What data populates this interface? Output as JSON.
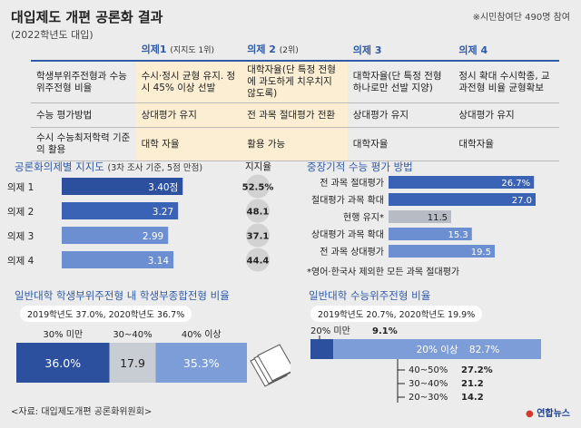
{
  "header": {
    "title": "대입제도 개편 공론화 결과",
    "subtitle": "(2022학년도 대입)",
    "note": "※시민참여단 490명 참여"
  },
  "table": {
    "columns": [
      {
        "label": "의제1",
        "sub": "(지지도 1위)"
      },
      {
        "label": "의제 2",
        "sub": "(2위)"
      },
      {
        "label": "의제 3",
        "sub": ""
      },
      {
        "label": "의제 4",
        "sub": ""
      }
    ],
    "rows": [
      {
        "header": "학생부위주전형과 수능위주전형 비율",
        "cells": [
          "수시·정시 균형 유지. 정시 45% 이상 선발",
          "대학자율(단 특정 전형에 과도하게 치우치지 않도록)",
          "대학자율(단 특정 전형 하나로만 선발 지양)",
          "정시 확대 수시학종, 교과전형 비율 균형확보"
        ]
      },
      {
        "header": "수능 평가방법",
        "cells": [
          "상대평가 유지",
          "전 과목  절대평가 전환",
          "상대평가 유지",
          "상대평가 유지"
        ]
      },
      {
        "header": "수시 수능최저학력 기준의 활용",
        "cells": [
          "대학 자율",
          "활용 가능",
          "대학자율",
          "대학자율"
        ]
      }
    ]
  },
  "support": {
    "title": "공론화의제별 지지도",
    "title_sub": "(3차 조사 기준, 5점 만점)",
    "pct_header": "지지율"
  },
  "method": {
    "title": "중장기적 수능 평가 방법",
    "footnote": "*영어·한국사 제외한 모든 과목 절대평가"
  },
  "comp": {
    "title": "일반대학 학생부위주전형 내 학생부종합전형 비율",
    "pill_text": "2019학년도 37.0%, 2020학년도 36.7%"
  },
  "csat": {
    "title": "일반대학 수능위주전형 비율",
    "pill_text": "2019학년도 20.7%, 2020학년도 19.9%"
  },
  "footer": {
    "source": "<자료: 대입제도개편 공론화위원회>",
    "logo": "연합뉴스"
  },
  "chart_data": [
    {
      "type": "bar",
      "orientation": "horizontal",
      "title": "공론화의제별 지지도",
      "categories": [
        "의제 1",
        "의제 2",
        "의제 3",
        "의제 4"
      ],
      "values": [
        3.4,
        3.27,
        2.99,
        3.14
      ],
      "value_labels": [
        "3.40점",
        "3.27",
        "2.99",
        "3.14"
      ],
      "support_pct": [
        "52.5%",
        "48.1",
        "37.1",
        "44.4"
      ],
      "xlim": [
        0,
        5
      ],
      "colors": [
        "#2c4f9e",
        "#3a62b5",
        "#6c8fd2",
        "#6c8fd2"
      ]
    },
    {
      "type": "bar",
      "orientation": "horizontal",
      "title": "중장기적 수능 평가 방법",
      "categories": [
        "전 과목 절대평가",
        "절대평가 과목 확대",
        "현행 유지*",
        "상대평가 과목 확대",
        "전 과목 상대평가"
      ],
      "values": [
        26.7,
        27.0,
        11.5,
        15.3,
        19.5
      ],
      "value_labels": [
        "26.7%",
        "27.0",
        "11.5",
        "15.3",
        "19.5"
      ],
      "colors": [
        "#3a62b5",
        "#3a62b5",
        "#b7bcc4",
        "#6c8fd2",
        "#6c8fd2"
      ]
    },
    {
      "type": "bar",
      "orientation": "stacked-horizontal",
      "title": "일반대학 학생부위주전형 내 학생부종합전형 비율",
      "categories": [
        "30% 미만",
        "30~40%",
        "40% 이상"
      ],
      "values": [
        36.0,
        17.9,
        35.3
      ],
      "value_labels": [
        "36.0%",
        "17.9",
        "35.3%"
      ],
      "colors": [
        "#2c4f9e",
        "#c8ccd3",
        "#7d9dd8"
      ]
    },
    {
      "type": "bar",
      "orientation": "stacked-horizontal",
      "title": "일반대학 수능위주전형 비율",
      "categories": [
        "20% 미만",
        "20% 이상"
      ],
      "values": [
        9.1,
        82.7
      ],
      "value_labels": [
        "9.1%",
        "82.7%"
      ],
      "breakdown": [
        {
          "label": "40~50%",
          "value": "27.2%"
        },
        {
          "label": "30~40%",
          "value": "21.2"
        },
        {
          "label": "20~30%",
          "value": "14.2"
        }
      ],
      "colors": [
        "#2c4f9e",
        "#7d9dd8"
      ]
    }
  ]
}
